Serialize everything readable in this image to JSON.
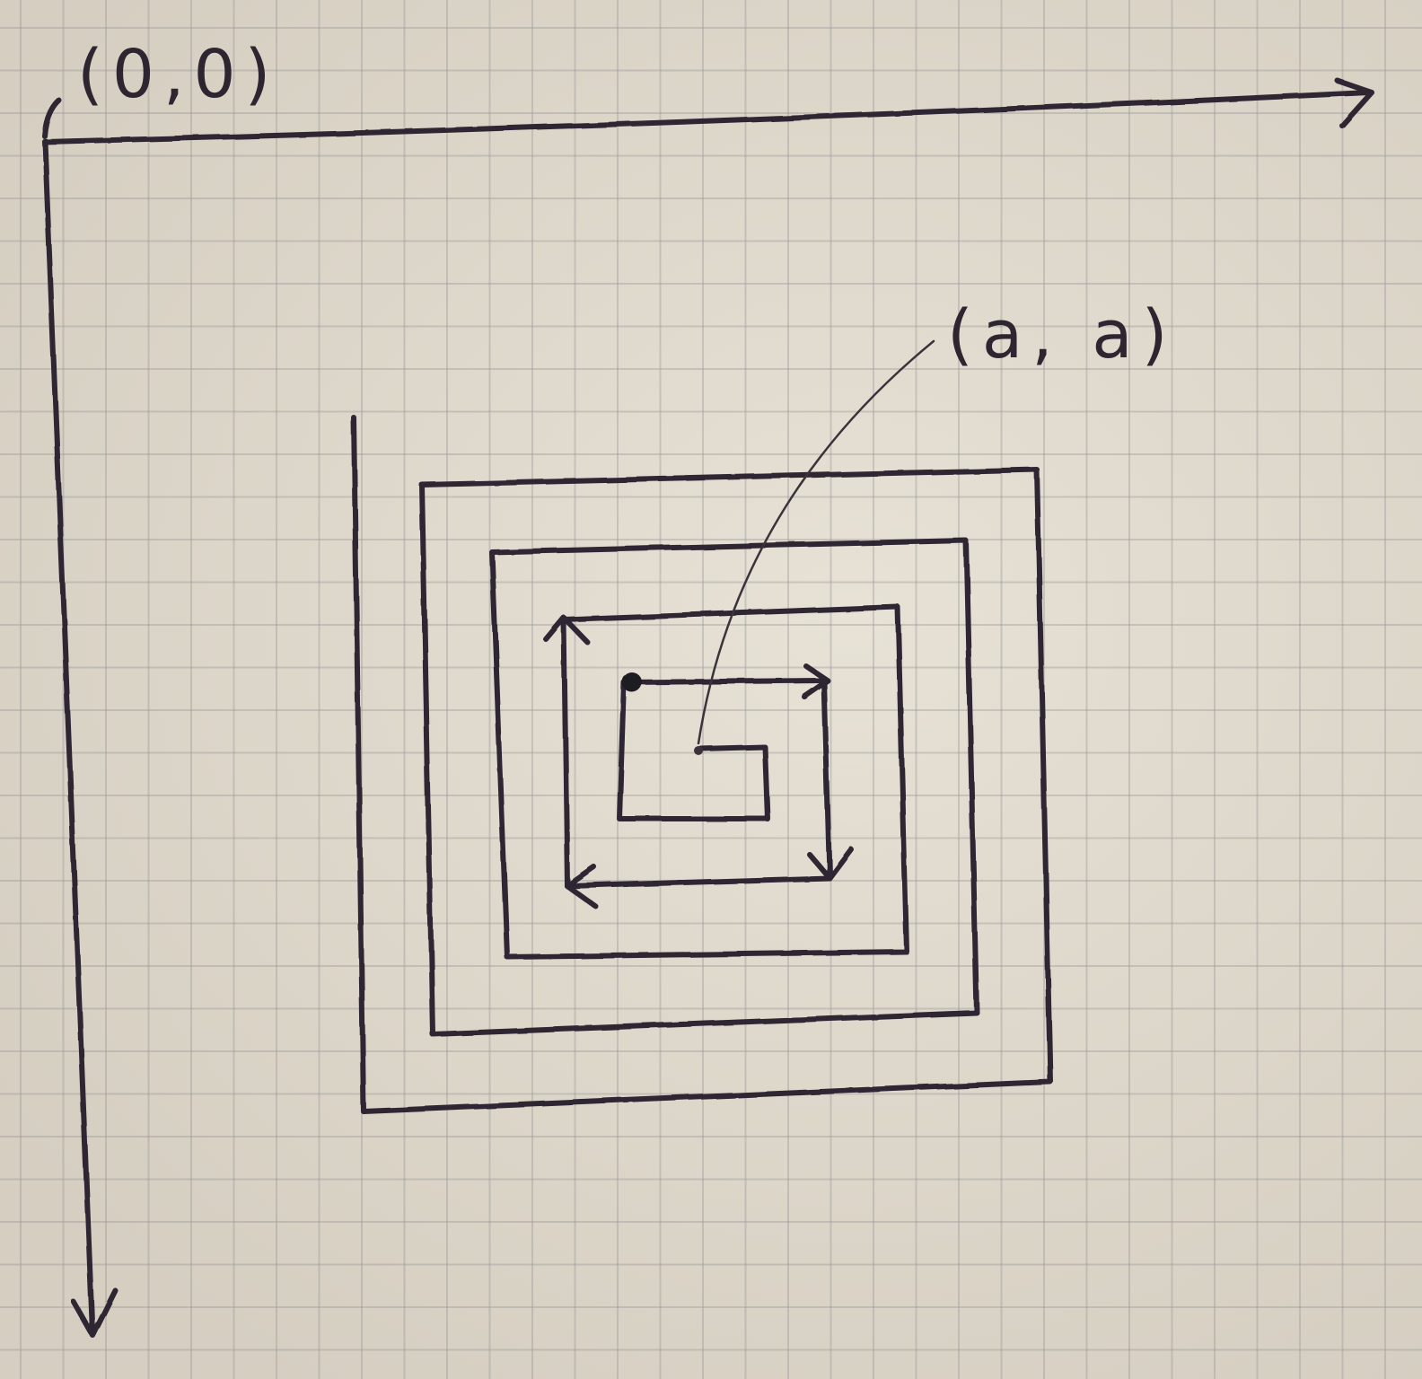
{
  "labels": {
    "origin": "(0,0)",
    "center": "(a, a)"
  },
  "colors": {
    "paper": "#e2dbcd",
    "grid": "#9a9a9a",
    "ink": "#2d2630"
  }
}
